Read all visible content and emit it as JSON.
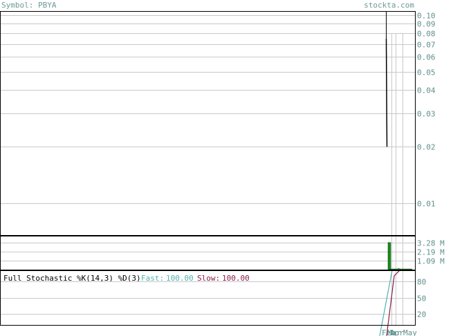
{
  "header": {
    "symbol_label": "Symbol: PBYA",
    "site": "stockta.com"
  },
  "colors": {
    "background": "#ffffff",
    "grid": "#c8c8c8",
    "frame": "#000000",
    "volume_bar": "#1a8a1a",
    "fast_line": "#4fb2b0",
    "slow_line": "#8b1a4a",
    "axis_text": "#5f8f8c"
  },
  "chart_data": [
    {
      "type": "line",
      "name": "price",
      "scale": "log",
      "ylim": [
        0.0068,
        0.105
      ],
      "y_ticks": [
        0.1,
        0.09,
        0.08,
        0.07,
        0.06,
        0.05,
        0.04,
        0.03,
        0.02,
        0.01
      ],
      "y_tick_labels": [
        "0.10",
        "0.09",
        "0.08",
        "0.07",
        "0.06",
        "0.05",
        "0.04",
        "0.03",
        "0.02",
        "0.01"
      ],
      "x_tick_labels": [
        "Feb",
        "Mar",
        "Apr",
        "May"
      ],
      "price_segment": {
        "x_from": "Feb",
        "y_start": 0.075,
        "y_end": 0.02
      }
    },
    {
      "type": "bar",
      "name": "volume",
      "y_ticks": [
        3.28,
        2.19,
        1.09
      ],
      "y_tick_labels": [
        "3.28 M",
        "2.19 M",
        "1.09 M"
      ],
      "unit": "M",
      "ylim": [
        0,
        4.1
      ],
      "values": [
        3.28,
        0.05,
        0.02,
        0.02,
        0.12,
        0.06,
        0.05,
        0.04,
        0.03,
        0.02
      ]
    },
    {
      "type": "line",
      "name": "stochastic",
      "title": "Full Stochastic %K(14,3) %D(3)",
      "fast_label": "Fast:",
      "fast_value": "100.00",
      "slow_label": "Slow:",
      "slow_value": "100.00",
      "y_ticks": [
        80,
        50,
        20
      ],
      "y_tick_labels": [
        "80",
        "50",
        "20"
      ],
      "ylim": [
        0,
        100
      ],
      "fast": [
        -20,
        100,
        100,
        100,
        100,
        100
      ],
      "slow": [
        -20,
        90,
        100,
        100,
        100,
        100
      ]
    }
  ]
}
